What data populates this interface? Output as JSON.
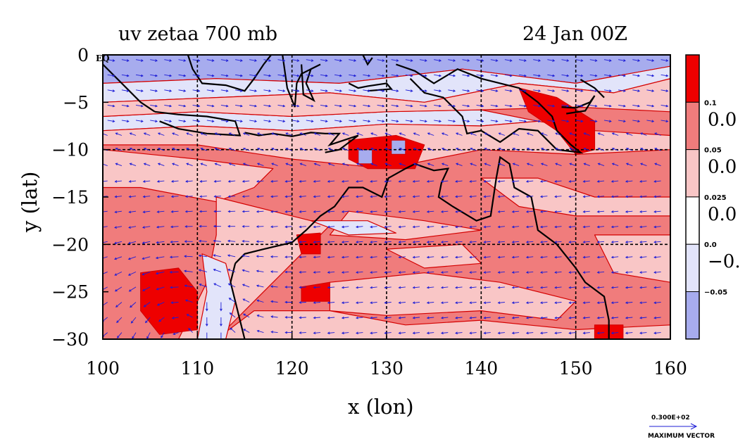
{
  "chart_data": {
    "type": "heatmap",
    "title_left": "uv zetaa 700 mb",
    "title_right": "24 Jan 00Z",
    "xlabel": "x (lon)",
    "ylabel": "y (lat)",
    "xlim": [
      100,
      160
    ],
    "ylim": [
      -30,
      0
    ],
    "x_ticks": [
      "100",
      "110",
      "120",
      "130",
      "140",
      "150",
      "160"
    ],
    "y_ticks": [
      "0",
      "−5",
      "−10",
      "−15",
      "−20",
      "−25",
      "−30"
    ],
    "y_tick_values": [
      0,
      -5,
      -10,
      -15,
      -20,
      -25,
      -30
    ],
    "x_tick_values": [
      100,
      110,
      120,
      130,
      140,
      150,
      160
    ],
    "eq_label": "EQ",
    "gridlines": "dashed at every 10° lon and 10° lat",
    "colorbar": {
      "bins": [
        {
          "color": "#ee0000",
          "small": "0.1",
          "large": "0.0"
        },
        {
          "color": "#f07c7c",
          "small": "0.05",
          "large": "0.0"
        },
        {
          "color": "#f9c6c6",
          "small": "0.025",
          "large": "0.0"
        },
        {
          "color": "#ffffff",
          "small": "0.0",
          "large": "−0."
        },
        {
          "color": "#e2e4fa",
          "small": "−0.05",
          "large": ""
        },
        {
          "color": "#a7acee",
          "small": "",
          "large": ""
        }
      ]
    },
    "vector_reference": {
      "magnitude": "0.300E+02",
      "label": "MAXIMUM VECTOR"
    },
    "colors": {
      "strong_positive": "#ee0000",
      "positive": "#f07c7c",
      "weak_positive": "#f9c6c6",
      "negative": "#e2e4fa",
      "strong_negative": "#a7acee",
      "vectors": "#1c1cd6",
      "contours": "#d40000",
      "coast": "#000000"
    }
  }
}
